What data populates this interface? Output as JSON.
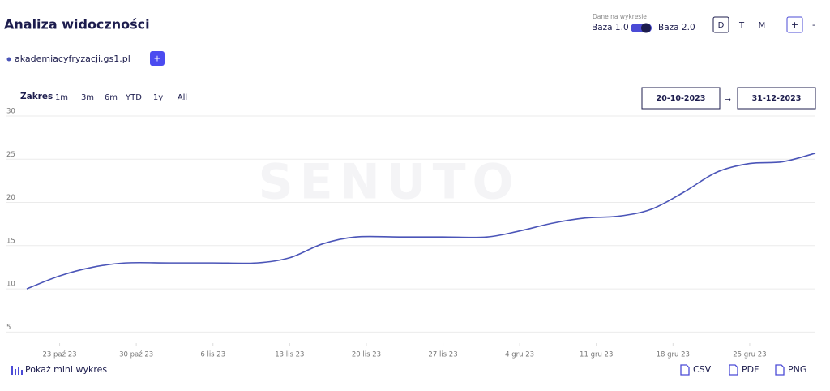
{
  "header": {
    "title": "Analiza widoczności",
    "data_label": "Dane na wykresie",
    "toggle_left": "Baza 1.0",
    "toggle_right": "Baza 2.0",
    "periods": [
      "D",
      "T",
      "M"
    ],
    "zoom_in": "+",
    "zoom_out": "-"
  },
  "domain": "akademiacyfryzacji.gs1.pl",
  "add_domain": "+",
  "range": {
    "label": "Zakres",
    "options": [
      "1m",
      "3m",
      "6m",
      "YTD",
      "1y",
      "All"
    ],
    "date_from": "20-10-2023",
    "arrow": "→",
    "date_to": "31-12-2023"
  },
  "watermark": "SENUTO",
  "chart_data": {
    "type": "line",
    "x": [
      "2023-10-20",
      "2023-10-23",
      "2023-10-26",
      "2023-10-29",
      "2023-11-02",
      "2023-11-06",
      "2023-11-10",
      "2023-11-13",
      "2023-11-16",
      "2023-11-19",
      "2023-11-23",
      "2023-11-27",
      "2023-12-01",
      "2023-12-04",
      "2023-12-07",
      "2023-12-10",
      "2023-12-13",
      "2023-12-16",
      "2023-12-19",
      "2023-12-22",
      "2023-12-25",
      "2023-12-28",
      "2023-12-31"
    ],
    "series": [
      {
        "name": "akademiacyfryzacji.gs1.pl",
        "color": "#4b55b8",
        "values": [
          10,
          11.5,
          12.5,
          13,
          13,
          13,
          13,
          13.6,
          15.2,
          16,
          16,
          16,
          16,
          16.7,
          17.6,
          18.2,
          18.4,
          19.2,
          21.2,
          23.5,
          24.5,
          24.7,
          25.7
        ]
      }
    ],
    "xlim": [
      "2023-10-20",
      "2023-12-31"
    ],
    "xticks": [
      {
        "value": "2023-10-23",
        "label": "23 paź 23"
      },
      {
        "value": "2023-10-30",
        "label": "30 paź 23"
      },
      {
        "value": "2023-11-06",
        "label": "6 lis 23"
      },
      {
        "value": "2023-11-13",
        "label": "13 lis 23"
      },
      {
        "value": "2023-11-20",
        "label": "20 lis 23"
      },
      {
        "value": "2023-11-27",
        "label": "27 lis 23"
      },
      {
        "value": "2023-12-04",
        "label": "4 gru 23"
      },
      {
        "value": "2023-12-11",
        "label": "11 gru 23"
      },
      {
        "value": "2023-12-18",
        "label": "18 gru 23"
      },
      {
        "value": "2023-12-25",
        "label": "25 gru 23"
      }
    ],
    "ylim": [
      4,
      30
    ],
    "yticks": [
      5,
      10,
      15,
      20,
      25,
      30
    ],
    "grid": true
  },
  "footer": {
    "mini_chart": "Pokaż mini wykres",
    "exports": [
      "CSV",
      "PDF",
      "PNG"
    ]
  }
}
